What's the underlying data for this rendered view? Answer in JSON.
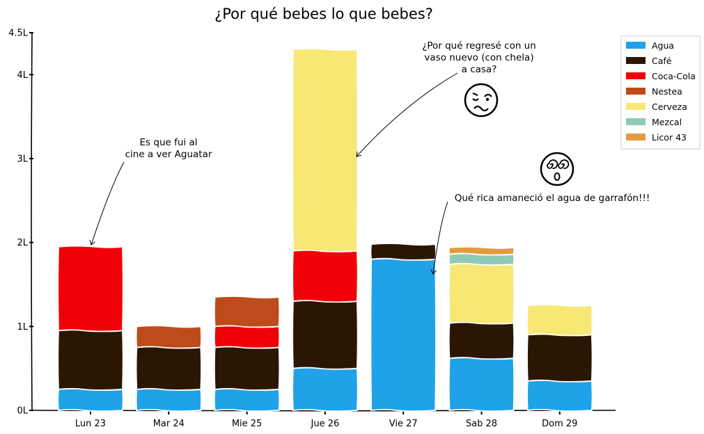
{
  "chart_data": {
    "type": "bar",
    "stacked": true,
    "title": "¿Por qué bebes lo que bebes?",
    "xlabel": "",
    "ylabel": "",
    "categories": [
      "Lun 23",
      "Mar 24",
      "Mie 25",
      "Jue 26",
      "Vie 27",
      "Sab 28",
      "Dom 29"
    ],
    "ylim": [
      0,
      4.5
    ],
    "yticks": [
      0,
      1,
      2,
      3,
      4,
      4.5
    ],
    "ytick_labels": [
      "0L",
      "1L",
      "2L",
      "3L",
      "4L",
      "4.5L"
    ],
    "series": [
      {
        "name": "Agua",
        "color": "#1fa2e8",
        "values": [
          0.25,
          0.25,
          0.25,
          0.5,
          1.8,
          0.62,
          0.35
        ]
      },
      {
        "name": "Café",
        "color": "#2b1604",
        "values": [
          0.7,
          0.5,
          0.5,
          0.8,
          0.18,
          0.42,
          0.55
        ]
      },
      {
        "name": "Coca-Cola",
        "color": "#f20007",
        "values": [
          1.0,
          0.0,
          0.25,
          0.6,
          0.0,
          0.0,
          0.0
        ]
      },
      {
        "name": "Nestea",
        "color": "#bd4b1b",
        "values": [
          0.0,
          0.25,
          0.35,
          0.0,
          0.0,
          0.0,
          0.0
        ]
      },
      {
        "name": "Cerveza",
        "color": "#f7e774",
        "values": [
          0.0,
          0.0,
          0.0,
          2.4,
          0.0,
          0.7,
          0.35
        ]
      },
      {
        "name": "Mezcal",
        "color": "#8ecbb4",
        "values": [
          0.0,
          0.0,
          0.0,
          0.0,
          0.0,
          0.12,
          0.0
        ]
      },
      {
        "name": "Licor 43",
        "color": "#e29c40",
        "values": [
          0.0,
          0.0,
          0.0,
          0.0,
          0.0,
          0.08,
          0.0
        ]
      }
    ],
    "legend_position": "top-right",
    "grid": false,
    "annotations": [
      {
        "lines": [
          "Es que fui al",
          "cine a ver Aguatar"
        ],
        "target_category": "Lun 23"
      },
      {
        "lines": [
          "¿Por qué regresé con un",
          "vaso nuevo (con chela)",
          "a casa?"
        ],
        "target_category": "Jue 26"
      },
      {
        "lines": [
          "Qué rica amaneció el agua de garrafón!!!"
        ],
        "target_category": "Vie 27"
      }
    ],
    "face_icons": [
      "woozy-face-icon",
      "dizzy-face-icon"
    ]
  }
}
